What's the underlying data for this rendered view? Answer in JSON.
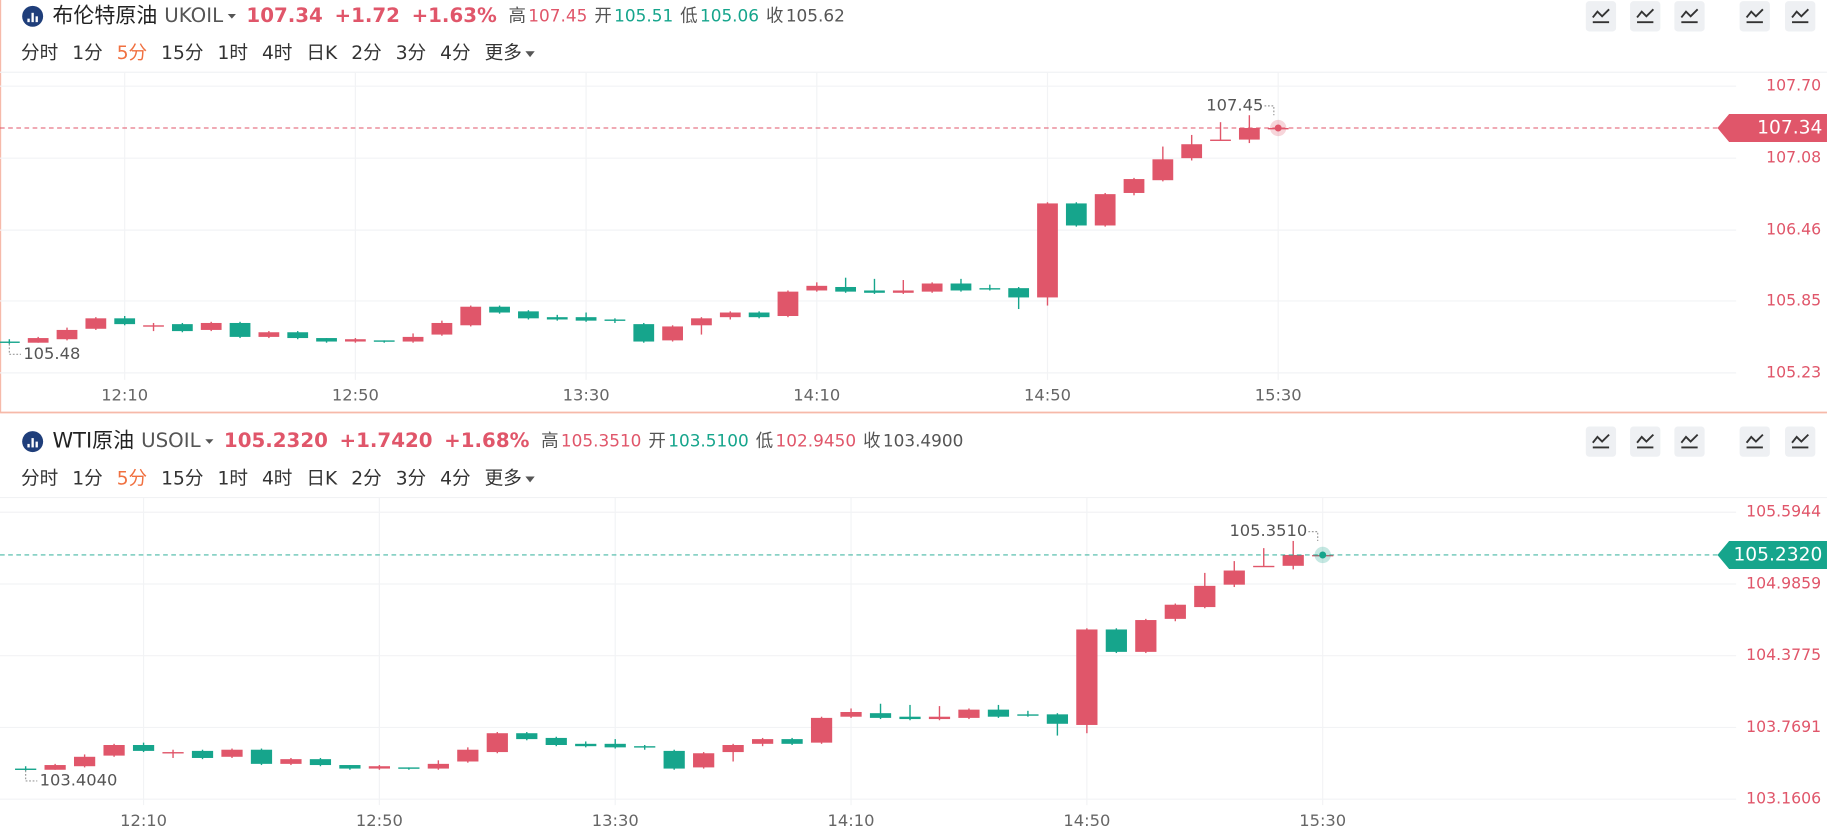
{
  "chart_data": [
    {
      "type": "candlestick",
      "title": "布伦特原油",
      "symbol": "UKOIL",
      "price": "107.34",
      "change": "+1.72",
      "change_pct": "+1.63%",
      "stats": [
        {
          "label": "高",
          "value": "107.45",
          "color": "#e0566a"
        },
        {
          "label": "开",
          "value": "105.51",
          "color": "#16a58c"
        },
        {
          "label": "低",
          "value": "105.06",
          "color": "#16a58c"
        },
        {
          "label": "收",
          "value": "105.62",
          "color": "#555"
        }
      ],
      "periods": [
        "分时",
        "1分",
        "5分",
        "15分",
        "1时",
        "4时",
        "日K",
        "2分",
        "3分",
        "4分"
      ],
      "active_period": "5分",
      "more": "更多",
      "up_color": "#e0566a",
      "down_color": "#16a58c",
      "last_color": "#e0566a",
      "categories": [
        null,
        null,
        null,
        null,
        "12:10",
        null,
        null,
        null,
        null,
        null,
        null,
        null,
        "12:50",
        null,
        null,
        null,
        null,
        null,
        null,
        null,
        "13:30",
        null,
        null,
        null,
        null,
        null,
        null,
        null,
        "14:10",
        null,
        null,
        null,
        null,
        null,
        null,
        null,
        "14:50",
        null,
        null,
        null,
        null,
        null,
        null,
        null,
        "15:30"
      ],
      "open": [
        105.5,
        105.49,
        105.52,
        105.61,
        105.7,
        105.63,
        105.65,
        105.6,
        105.66,
        105.54,
        105.58,
        105.53,
        105.5,
        105.51,
        105.5,
        105.56,
        105.64,
        105.8,
        105.76,
        105.71,
        105.71,
        105.69,
        105.65,
        105.51,
        105.64,
        105.71,
        105.75,
        105.72,
        105.94,
        105.97,
        105.94,
        105.92,
        105.93,
        106.0,
        105.96,
        105.96,
        105.88,
        106.69,
        106.5,
        106.78,
        106.89,
        107.08,
        107.23,
        107.24,
        107.34
      ],
      "high": [
        105.52,
        105.54,
        105.62,
        105.71,
        105.72,
        105.66,
        105.66,
        105.67,
        105.67,
        105.59,
        105.59,
        105.53,
        105.53,
        105.51,
        105.57,
        105.68,
        105.81,
        105.81,
        105.77,
        105.73,
        105.75,
        105.7,
        105.66,
        105.64,
        105.71,
        105.76,
        105.76,
        105.94,
        106.01,
        106.05,
        106.04,
        106.03,
        106.01,
        106.04,
        105.99,
        105.97,
        106.7,
        106.7,
        106.78,
        106.91,
        107.18,
        107.28,
        107.39,
        107.45,
        107.34
      ],
      "low": [
        105.48,
        105.49,
        105.51,
        105.6,
        105.64,
        105.59,
        105.58,
        105.59,
        105.53,
        105.53,
        105.52,
        105.49,
        105.49,
        105.49,
        105.49,
        105.55,
        105.63,
        105.74,
        105.69,
        105.68,
        105.67,
        105.66,
        105.49,
        105.5,
        105.56,
        105.69,
        105.7,
        105.71,
        105.93,
        105.92,
        105.91,
        105.91,
        105.92,
        105.93,
        105.94,
        105.78,
        105.81,
        106.49,
        106.49,
        106.76,
        106.88,
        107.06,
        107.23,
        107.21,
        107.34
      ],
      "close": [
        105.49,
        105.53,
        105.6,
        105.7,
        105.65,
        105.64,
        105.59,
        105.66,
        105.54,
        105.58,
        105.53,
        105.5,
        105.52,
        105.5,
        105.54,
        105.66,
        105.8,
        105.75,
        105.7,
        105.69,
        105.68,
        105.68,
        105.5,
        105.63,
        105.7,
        105.75,
        105.71,
        105.93,
        105.98,
        105.93,
        105.92,
        105.94,
        106.0,
        105.94,
        105.95,
        105.88,
        106.69,
        106.5,
        106.77,
        106.9,
        107.07,
        107.2,
        107.24,
        107.34,
        107.34
      ],
      "ylim": [
        105.17,
        107.76
      ],
      "yticks": [
        {
          "value": 107.7,
          "label": "107.70"
        },
        107.08,
        106.46,
        105.85,
        105.23
      ],
      "last": 107.34,
      "high_label": "107.45",
      "low_label": "105.48"
    },
    {
      "type": "candlestick",
      "title": "WTI原油",
      "symbol": "USOIL",
      "price": "105.2320",
      "change": "+1.7420",
      "change_pct": "+1.68%",
      "stats": [
        {
          "label": "高",
          "value": "105.3510",
          "color": "#e0566a"
        },
        {
          "label": "开",
          "value": "103.5100",
          "color": "#16a58c"
        },
        {
          "label": "低",
          "value": "102.9450",
          "color": "#e0566a"
        },
        {
          "label": "收",
          "value": "103.4900",
          "color": "#555"
        }
      ],
      "periods": [
        "分时",
        "1分",
        "5分",
        "15分",
        "1时",
        "4时",
        "日K",
        "2分",
        "3分",
        "4分"
      ],
      "active_period": "5分",
      "more": "更多",
      "up_color": "#e0566a",
      "down_color": "#16a58c",
      "last_color": "#16a58c",
      "categories": [
        null,
        null,
        null,
        null,
        "12:10",
        null,
        null,
        null,
        null,
        null,
        null,
        null,
        "12:50",
        null,
        null,
        null,
        null,
        null,
        null,
        null,
        "13:30",
        null,
        null,
        null,
        null,
        null,
        null,
        null,
        "14:10",
        null,
        null,
        null,
        null,
        null,
        null,
        null,
        "14:50",
        null,
        null,
        null,
        null,
        null,
        null,
        null,
        "15:30"
      ],
      "open": [
        103.42,
        103.41,
        103.44,
        103.53,
        103.62,
        103.55,
        103.57,
        103.52,
        103.58,
        103.46,
        103.5,
        103.45,
        103.42,
        103.43,
        103.42,
        103.48,
        103.56,
        103.72,
        103.68,
        103.63,
        103.63,
        103.61,
        103.57,
        103.43,
        103.56,
        103.63,
        103.67,
        103.64,
        103.86,
        103.89,
        103.86,
        103.84,
        103.85,
        103.92,
        103.88,
        103.88,
        103.79,
        104.6,
        104.41,
        104.69,
        104.79,
        104.98,
        105.13,
        105.14,
        105.232
      ],
      "high": [
        103.44,
        103.46,
        103.54,
        103.63,
        103.64,
        103.58,
        103.58,
        103.59,
        103.59,
        103.51,
        103.51,
        103.45,
        103.45,
        103.43,
        103.49,
        103.6,
        103.73,
        103.73,
        103.69,
        103.65,
        103.67,
        103.62,
        103.58,
        103.56,
        103.63,
        103.68,
        103.68,
        103.86,
        103.93,
        103.97,
        103.96,
        103.95,
        103.93,
        103.96,
        103.91,
        103.89,
        104.61,
        104.61,
        104.69,
        104.82,
        105.08,
        105.18,
        105.29,
        105.351,
        105.232
      ],
      "low": [
        103.404,
        103.41,
        103.43,
        103.52,
        103.56,
        103.51,
        103.5,
        103.51,
        103.45,
        103.45,
        103.44,
        103.41,
        103.41,
        103.41,
        103.41,
        103.47,
        103.55,
        103.66,
        103.61,
        103.6,
        103.59,
        103.58,
        103.41,
        103.42,
        103.48,
        103.61,
        103.62,
        103.63,
        103.85,
        103.84,
        103.83,
        103.83,
        103.84,
        103.85,
        103.86,
        103.7,
        103.72,
        104.4,
        104.4,
        104.67,
        104.78,
        104.96,
        105.13,
        105.11,
        105.232
      ],
      "close": [
        103.41,
        103.45,
        103.52,
        103.62,
        103.57,
        103.56,
        103.51,
        103.58,
        103.46,
        103.5,
        103.45,
        103.42,
        103.44,
        103.42,
        103.46,
        103.58,
        103.72,
        103.67,
        103.62,
        103.61,
        103.6,
        103.6,
        103.42,
        103.55,
        103.62,
        103.67,
        103.63,
        103.85,
        103.9,
        103.85,
        103.84,
        103.86,
        103.92,
        103.86,
        103.87,
        103.8,
        104.6,
        104.41,
        104.68,
        104.81,
        104.97,
        105.1,
        105.14,
        105.232,
        105.232
      ],
      "ylim": [
        103.11,
        105.66
      ],
      "yticks": [
        105.5944,
        104.9859,
        104.3775,
        103.7691,
        103.1606
      ],
      "last": {
        "value": 105.232,
        "label": "105.2320"
      },
      "high_label": "105.3510",
      "low_label": "103.4040"
    }
  ]
}
